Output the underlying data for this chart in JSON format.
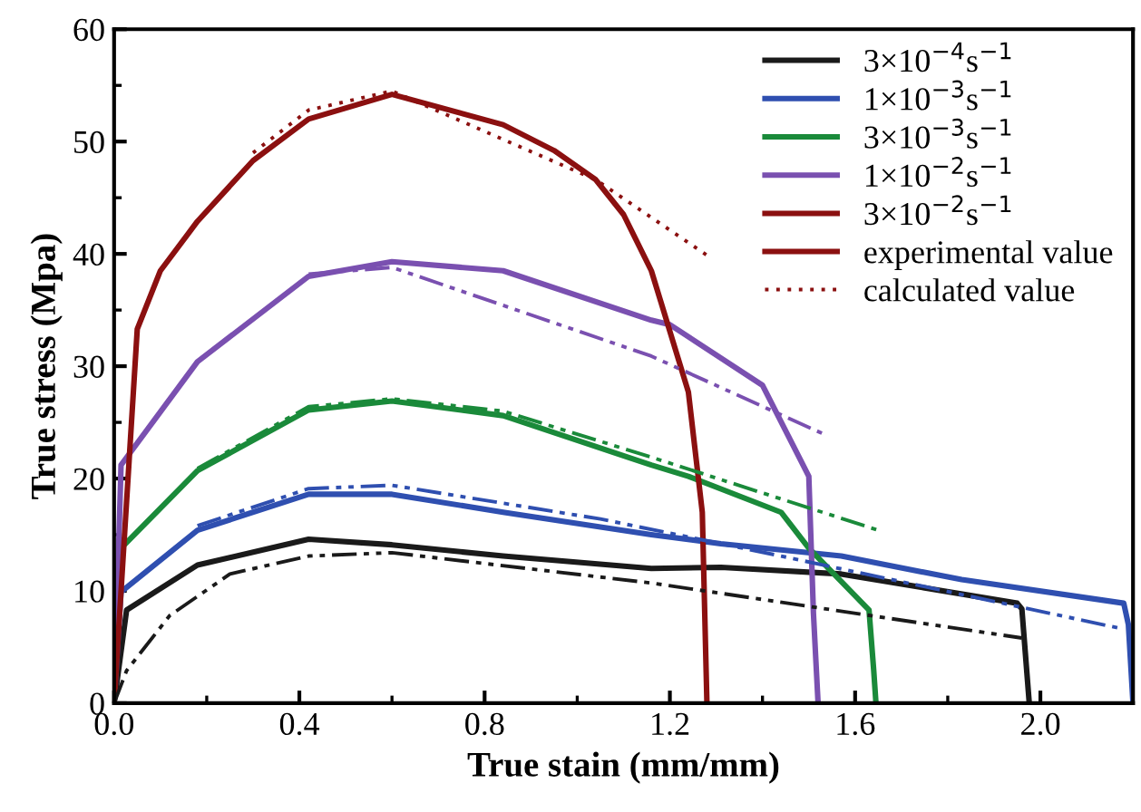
{
  "chart_data": {
    "type": "line",
    "xlabel": "True stain (mm/mm)",
    "ylabel": "True stress (Mpa)",
    "xlim": [
      0,
      2.2
    ],
    "xticks": [
      {
        "value": 0,
        "label": "0.0"
      },
      0.4,
      0.8,
      1.2,
      1.6,
      {
        "value": 2.0,
        "label": "2.0"
      }
    ],
    "ylim": [
      0,
      60
    ],
    "yticks": [
      0,
      10,
      20,
      30,
      40,
      50,
      60
    ],
    "grid": false,
    "legend": "top right",
    "series": [
      {
        "name": "3×10$^{−4}$s$^{−1}$",
        "color": "#1a1a1a",
        "line_style": "solid",
        "x": [
          0,
          0.027,
          0.18,
          0.42,
          0.6,
          0.84,
          1.16,
          1.31,
          1.57,
          1.95,
          1.96,
          1.976
        ],
        "values": [
          0,
          8.3,
          12.3,
          14.6,
          14.1,
          13.1,
          12.0,
          12.1,
          11.5,
          8.9,
          8.4,
          0
        ]
      },
      {
        "name": "1×10$^{−3}$s$^{−1}$",
        "color": "#2f4fb0",
        "line_style": "solid",
        "x": [
          0,
          0.015,
          0.18,
          0.42,
          0.6,
          0.84,
          1.16,
          1.31,
          1.57,
          1.83,
          2.18,
          2.19,
          2.2
        ],
        "values": [
          0,
          9.9,
          15.4,
          18.6,
          18.6,
          17.0,
          15.0,
          14.2,
          13.1,
          11.0,
          8.9,
          7.0,
          0
        ]
      },
      {
        "name": "3×10$^{−3}$s$^{−1}$",
        "color": "#1a8a3a",
        "line_style": "solid",
        "x": [
          0,
          0.015,
          0.18,
          0.42,
          0.6,
          0.84,
          1.16,
          1.24,
          1.44,
          1.5,
          1.63,
          1.64,
          1.645
        ],
        "values": [
          0,
          13.8,
          20.7,
          26.1,
          26.9,
          25.6,
          21.2,
          20.2,
          17.0,
          13.8,
          8.3,
          3.0,
          0
        ]
      },
      {
        "name": "1×10$^{−2}$s$^{−1}$",
        "color": "#7a50b0",
        "line_style": "solid",
        "x": [
          0,
          0.015,
          0.18,
          0.42,
          0.6,
          0.84,
          1.16,
          1.2,
          1.4,
          1.5,
          1.51,
          1.52
        ],
        "values": [
          0,
          21.2,
          30.4,
          38.0,
          39.3,
          38.5,
          34.1,
          33.7,
          28.3,
          20.2,
          8.0,
          0
        ]
      },
      {
        "name": "3×10$^{−2}$s$^{−1}$",
        "color": "#8b1010",
        "line_style": "solid",
        "x": [
          0,
          0.05,
          0.1,
          0.18,
          0.3,
          0.42,
          0.6,
          0.84,
          0.95,
          1.04,
          1.1,
          1.16,
          1.18,
          1.24,
          1.27,
          1.28
        ],
        "values": [
          0,
          33.3,
          38.5,
          42.9,
          48.3,
          52.0,
          54.2,
          51.5,
          49.2,
          46.6,
          43.5,
          38.5,
          35.8,
          27.7,
          17.0,
          0
        ]
      },
      {
        "color": "#1a1a1a",
        "line_style": "dashed",
        "x": [
          0,
          0.027,
          0.12,
          0.25,
          0.42,
          0.6,
          1.16,
          1.96
        ],
        "values": [
          0,
          2.9,
          7.8,
          11.5,
          13.1,
          13.4,
          10.7,
          5.8
        ]
      },
      {
        "color": "#2f4fb0",
        "line_style": "dashed",
        "x": [
          0.18,
          0.42,
          0.6,
          1.05,
          1.44,
          2.18
        ],
        "values": [
          15.8,
          19.1,
          19.4,
          16.4,
          13.1,
          6.6
        ]
      },
      {
        "color": "#1a8a3a",
        "line_style": "dashed",
        "x": [
          0.18,
          0.42,
          0.6,
          0.84,
          1.16,
          1.65
        ],
        "values": [
          20.9,
          26.4,
          27.1,
          26.0,
          21.9,
          15.4
        ]
      },
      {
        "color": "#7a50b0",
        "line_style": "dashed",
        "x": [
          0.42,
          0.6,
          1.16,
          1.53
        ],
        "values": [
          38.2,
          38.8,
          30.9,
          24.0
        ]
      },
      {
        "name": "experimental value",
        "color": "#8b1010",
        "line_style": "solid"
      },
      {
        "name": "calculated value",
        "color": "#8b1010",
        "line_style": "dotted",
        "x": [
          0.3,
          0.42,
          0.6,
          1.04,
          1.29
        ],
        "values": [
          49.0,
          52.8,
          54.5,
          46.6,
          39.6
        ]
      }
    ]
  }
}
